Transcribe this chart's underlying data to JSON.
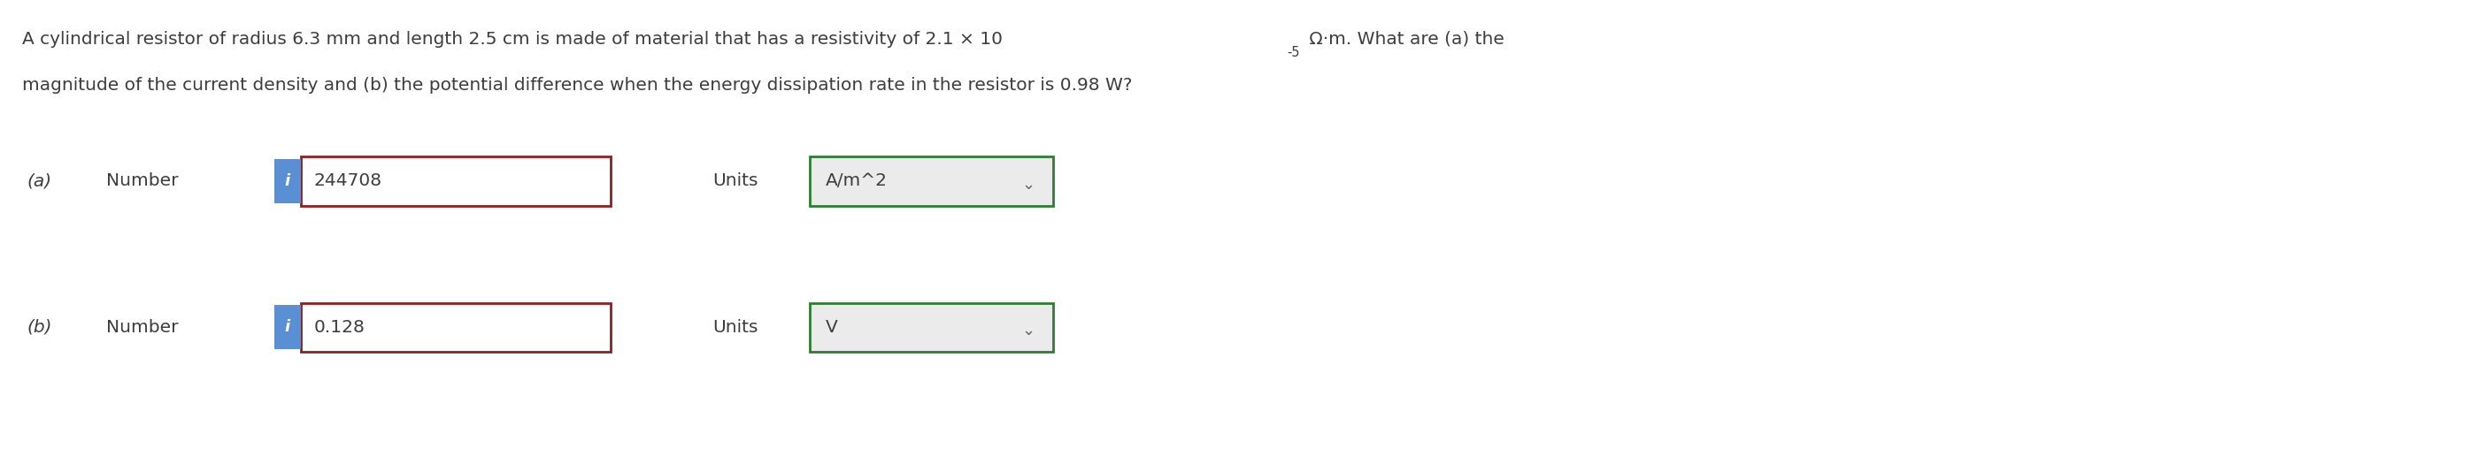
{
  "line1_before_sup": "A cylindrical resistor of radius 6.3 mm and length 2.5 cm is made of material that has a resistivity of 2.1 × 10",
  "line1_sup": "-5",
  "line1_after_sup": " Ω·m. What are (a) the",
  "line2": "magnitude of the current density and (b) the potential difference when the energy dissipation rate in the resistor is 0.98 W?",
  "part_a_label": "(a)",
  "part_b_label": "(b)",
  "number_label": "Number",
  "units_label": "Units",
  "value_a": "244708",
  "value_b": "0.128",
  "units_a": "A/m^2",
  "units_b": "V",
  "bg_color": "#ffffff",
  "text_color": "#3d3d3d",
  "input_bg": "#ffffff",
  "input_border_color": "#8B2020",
  "info_btn_color": "#5B8FD4",
  "units_border_color": "#2E7D32",
  "units_bg_color": "#ebebeb",
  "body_fontsize": 14.5,
  "input_fontsize": 14.5,
  "label_fontsize": 14.5,
  "part_fontsize": 14.5,
  "info_fontsize": 13,
  "units_dropdown_fontsize": 14.5
}
